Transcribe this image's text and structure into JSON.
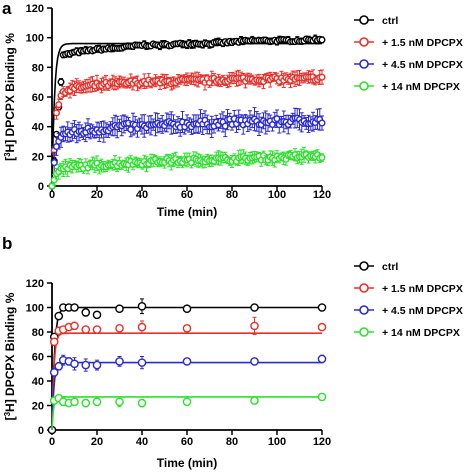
{
  "chart_data": [
    {
      "panel_label": "a",
      "type": "scatter",
      "subtype": "time-course with error bars and fitted curves",
      "xlabel": "Time (min)",
      "ylabel_prefix": "[",
      "ylabel_superscript": "3",
      "ylabel_suffix": "H] DPCPX Binding %",
      "xlim": [
        0,
        120
      ],
      "ylim": [
        0,
        120
      ],
      "xticks": [
        0,
        20,
        40,
        60,
        80,
        100,
        120
      ],
      "yticks": [
        0,
        20,
        40,
        60,
        80,
        100,
        120
      ],
      "grid": false,
      "legend_position": "right",
      "sampling_interval_min": 1,
      "series": [
        {
          "name": "ctrl",
          "color": "#000000",
          "plateau": 100,
          "k": 0.9,
          "points": [
            [
              0,
              0
            ],
            [
              5,
              88
            ],
            [
              10,
              90
            ],
            [
              20,
              92
            ],
            [
              30,
              93
            ],
            [
              40,
              95
            ],
            [
              50,
              95
            ],
            [
              60,
              96
            ],
            [
              70,
              96
            ],
            [
              80,
              97
            ],
            [
              90,
              98
            ],
            [
              100,
              98
            ],
            [
              110,
              98
            ],
            [
              120,
              99
            ]
          ],
          "error": 2,
          "fit_plateau": 96,
          "fit_k": 0.9
        },
        {
          "name": "+ 1.5 nM DPCPX",
          "color": "#e8302a",
          "plateau": 73,
          "points": [
            [
              0,
              0
            ],
            [
              2,
              50
            ],
            [
              5,
              64
            ],
            [
              10,
              66
            ],
            [
              20,
              68
            ],
            [
              30,
              69
            ],
            [
              40,
              70
            ],
            [
              50,
              70
            ],
            [
              60,
              71
            ],
            [
              70,
              71
            ],
            [
              80,
              72
            ],
            [
              90,
              72
            ],
            [
              100,
              72
            ],
            [
              110,
              72
            ],
            [
              120,
              73
            ]
          ],
          "error": 4
        },
        {
          "name": "+ 4.5 nM DPCPX",
          "color": "#2b2bcc",
          "plateau": 45,
          "points": [
            [
              0,
              0
            ],
            [
              2,
              28
            ],
            [
              5,
              35
            ],
            [
              10,
              36
            ],
            [
              20,
              38
            ],
            [
              30,
              40
            ],
            [
              40,
              40
            ],
            [
              50,
              41
            ],
            [
              60,
              42
            ],
            [
              70,
              42
            ],
            [
              80,
              43
            ],
            [
              90,
              43
            ],
            [
              100,
              43
            ],
            [
              110,
              44
            ],
            [
              120,
              44
            ]
          ],
          "error": 6
        },
        {
          "name": "+ 14 nM DPCPX",
          "color": "#2de02d",
          "plateau": 20,
          "points": [
            [
              0,
              0
            ],
            [
              2,
              8
            ],
            [
              5,
              12
            ],
            [
              10,
              13
            ],
            [
              20,
              14
            ],
            [
              30,
              15
            ],
            [
              40,
              16
            ],
            [
              50,
              17
            ],
            [
              60,
              17
            ],
            [
              70,
              18
            ],
            [
              80,
              18
            ],
            [
              90,
              19
            ],
            [
              100,
              19
            ],
            [
              110,
              20
            ],
            [
              120,
              20
            ]
          ],
          "error": 4
        }
      ]
    },
    {
      "panel_label": "b",
      "type": "scatter",
      "subtype": "time-course with error bars and fitted curves",
      "xlabel": "Time (min)",
      "ylabel_prefix": "[",
      "ylabel_superscript": "3",
      "ylabel_suffix": "H] DPCPX Binding %",
      "xlim": [
        0,
        120
      ],
      "ylim": [
        0,
        120
      ],
      "xticks": [
        0,
        20,
        40,
        60,
        80,
        100,
        120
      ],
      "yticks": [
        0,
        20,
        40,
        60,
        80,
        100,
        120
      ],
      "grid": false,
      "legend_position": "right",
      "series": [
        {
          "name": "ctrl",
          "color": "#000000",
          "fit_plateau": 100,
          "fit_k": 0.9,
          "points": [
            {
              "x": 0,
              "y": 0,
              "err": 0
            },
            {
              "x": 1,
              "y": 76,
              "err": 0
            },
            {
              "x": 3,
              "y": 93,
              "err": 2
            },
            {
              "x": 5,
              "y": 100,
              "err": 2
            },
            {
              "x": 7.5,
              "y": 100,
              "err": 0
            },
            {
              "x": 10,
              "y": 100,
              "err": 2
            },
            {
              "x": 15,
              "y": 96,
              "err": 3
            },
            {
              "x": 20,
              "y": 94,
              "err": 2
            },
            {
              "x": 30,
              "y": 99,
              "err": 2
            },
            {
              "x": 40,
              "y": 101,
              "err": 6
            },
            {
              "x": 60,
              "y": 99,
              "err": 2
            },
            {
              "x": 90,
              "y": 100,
              "err": 2
            },
            {
              "x": 120,
              "y": 100,
              "err": 1
            }
          ]
        },
        {
          "name": "+ 1.5 nM DPCPX",
          "color": "#e8302a",
          "fit_plateau": 79,
          "fit_k": 1.2,
          "points": [
            {
              "x": 1,
              "y": 72,
              "err": 2
            },
            {
              "x": 3,
              "y": 81,
              "err": 3
            },
            {
              "x": 5,
              "y": 82,
              "err": 2
            },
            {
              "x": 7.5,
              "y": 84,
              "err": 2
            },
            {
              "x": 10,
              "y": 85,
              "err": 3
            },
            {
              "x": 15,
              "y": 82,
              "err": 2
            },
            {
              "x": 20,
              "y": 82,
              "err": 2
            },
            {
              "x": 30,
              "y": 83,
              "err": 2
            },
            {
              "x": 40,
              "y": 84,
              "err": 5
            },
            {
              "x": 60,
              "y": 83,
              "err": 2
            },
            {
              "x": 90,
              "y": 85,
              "err": 7
            },
            {
              "x": 120,
              "y": 84,
              "err": 2
            }
          ]
        },
        {
          "name": "+ 4.5 nM DPCPX",
          "color": "#2b2bcc",
          "fit_plateau": 55,
          "fit_k": 1.2,
          "points": [
            {
              "x": 1,
              "y": 47,
              "err": 3
            },
            {
              "x": 3,
              "y": 52,
              "err": 3
            },
            {
              "x": 5,
              "y": 57,
              "err": 4
            },
            {
              "x": 7.5,
              "y": 56,
              "err": 3
            },
            {
              "x": 10,
              "y": 54,
              "err": 5
            },
            {
              "x": 15,
              "y": 53,
              "err": 5
            },
            {
              "x": 20,
              "y": 53,
              "err": 4
            },
            {
              "x": 30,
              "y": 56,
              "err": 4
            },
            {
              "x": 40,
              "y": 55,
              "err": 5
            },
            {
              "x": 60,
              "y": 56,
              "err": 2
            },
            {
              "x": 90,
              "y": 56,
              "err": 2
            },
            {
              "x": 120,
              "y": 58,
              "err": 3
            }
          ]
        },
        {
          "name": "+ 14 nM DPCPX",
          "color": "#2de02d",
          "fit_plateau": 27,
          "fit_k": 1.5,
          "points": [
            {
              "x": 1,
              "y": 24,
              "err": 2
            },
            {
              "x": 3,
              "y": 26,
              "err": 2
            },
            {
              "x": 5,
              "y": 23,
              "err": 3
            },
            {
              "x": 7.5,
              "y": 22,
              "err": 2
            },
            {
              "x": 10,
              "y": 23,
              "err": 2
            },
            {
              "x": 15,
              "y": 22,
              "err": 3
            },
            {
              "x": 20,
              "y": 23,
              "err": 3
            },
            {
              "x": 30,
              "y": 23,
              "err": 4
            },
            {
              "x": 40,
              "y": 22,
              "err": 3
            },
            {
              "x": 60,
              "y": 23,
              "err": 2
            },
            {
              "x": 90,
              "y": 24,
              "err": 2
            },
            {
              "x": 120,
              "y": 27,
              "err": 2
            }
          ]
        }
      ]
    }
  ]
}
